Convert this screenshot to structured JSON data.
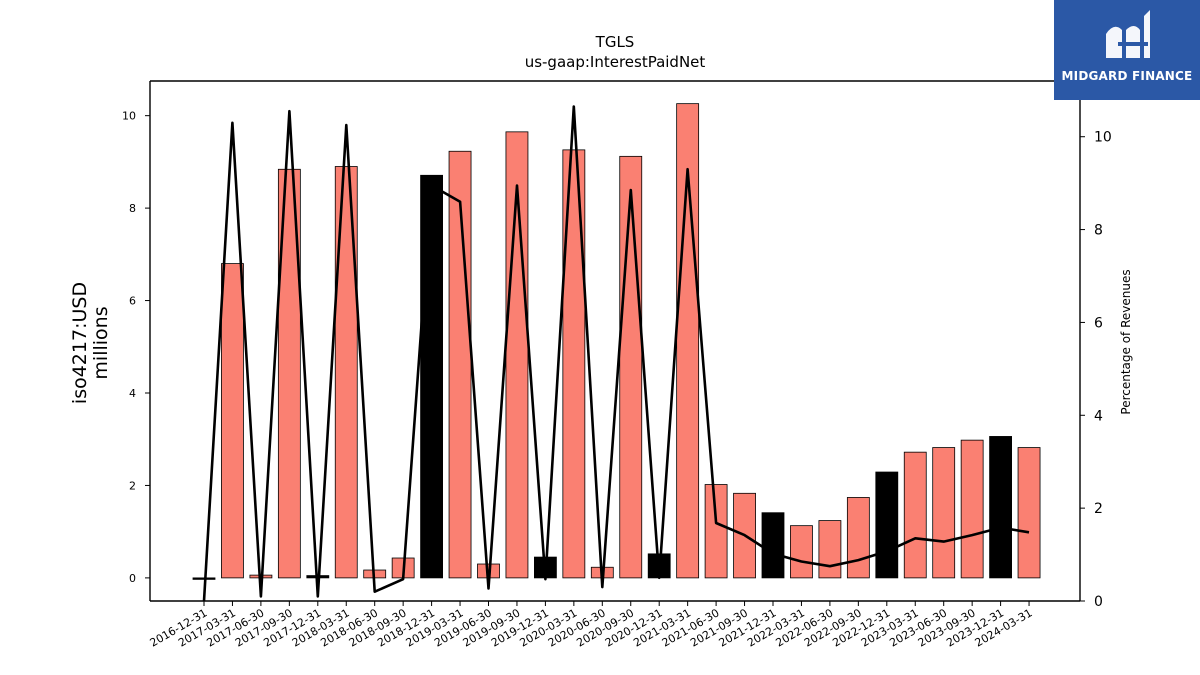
{
  "chart_data": {
    "type": "bar",
    "title": "TGLS",
    "subtitle": "us-gaap:InterestPaidNet",
    "ylabel_line1": "iso4217:USD",
    "ylabel_line2": "millions",
    "ylabel_right": "Percentage of Revenues",
    "ylim": [
      -0.5,
      10.75
    ],
    "ylim_right": [
      0,
      11.2
    ],
    "yticks": [
      0,
      2,
      4,
      6,
      8,
      10
    ],
    "yticks_right": [
      0,
      2,
      4,
      6,
      8,
      10
    ],
    "grid": false,
    "colors": {
      "quarterly": "#FA8072",
      "annual": "#000000",
      "line": "#000000"
    },
    "categories": [
      "2016-12-31",
      "2017-03-31",
      "2017-06-30",
      "2017-09-30",
      "2017-12-31",
      "2018-03-31",
      "2018-06-30",
      "2018-09-30",
      "2018-12-31",
      "2019-03-31",
      "2019-06-30",
      "2019-09-30",
      "2019-12-31",
      "2020-03-31",
      "2020-06-30",
      "2020-09-30",
      "2020-12-31",
      "2021-03-31",
      "2021-06-30",
      "2021-09-30",
      "2021-12-31",
      "2022-03-31",
      "2022-06-30",
      "2022-09-30",
      "2022-12-31",
      "2023-03-31",
      "2023-06-30",
      "2023-09-30",
      "2023-12-31",
      "2024-03-31"
    ],
    "series": [
      {
        "values": [
          0.0,
          6.8,
          0.06,
          8.84,
          0.05,
          8.9,
          0.17,
          0.43,
          8.71,
          9.23,
          0.3,
          9.65,
          0.45,
          9.26,
          0.23,
          9.12,
          0.52,
          10.26,
          2.02,
          1.83,
          1.41,
          1.13,
          1.24,
          1.74,
          2.29,
          2.72,
          2.82,
          2.98,
          3.06,
          2.82
        ],
        "period": [
          "annual",
          "quarterly",
          "quarterly",
          "quarterly",
          "annual",
          "quarterly",
          "quarterly",
          "quarterly",
          "annual",
          "quarterly",
          "quarterly",
          "quarterly",
          "annual",
          "quarterly",
          "quarterly",
          "quarterly",
          "annual",
          "quarterly",
          "quarterly",
          "quarterly",
          "annual",
          "quarterly",
          "quarterly",
          "quarterly",
          "annual",
          "quarterly",
          "quarterly",
          "quarterly",
          "annual",
          "quarterly"
        ]
      },
      {
        "type": "line",
        "axis": "right",
        "values": [
          0.0,
          10.3,
          0.1,
          10.55,
          0.1,
          10.25,
          0.2,
          0.47,
          8.95,
          8.6,
          0.27,
          8.95,
          0.47,
          10.65,
          0.3,
          8.85,
          0.5,
          9.3,
          1.68,
          1.42,
          1.02,
          0.85,
          0.75,
          0.88,
          1.07,
          1.35,
          1.28,
          1.42,
          1.58,
          1.48
        ]
      }
    ]
  },
  "logo": {
    "text": "MIDGARD FINANCE",
    "bg": "#2B58A6"
  }
}
